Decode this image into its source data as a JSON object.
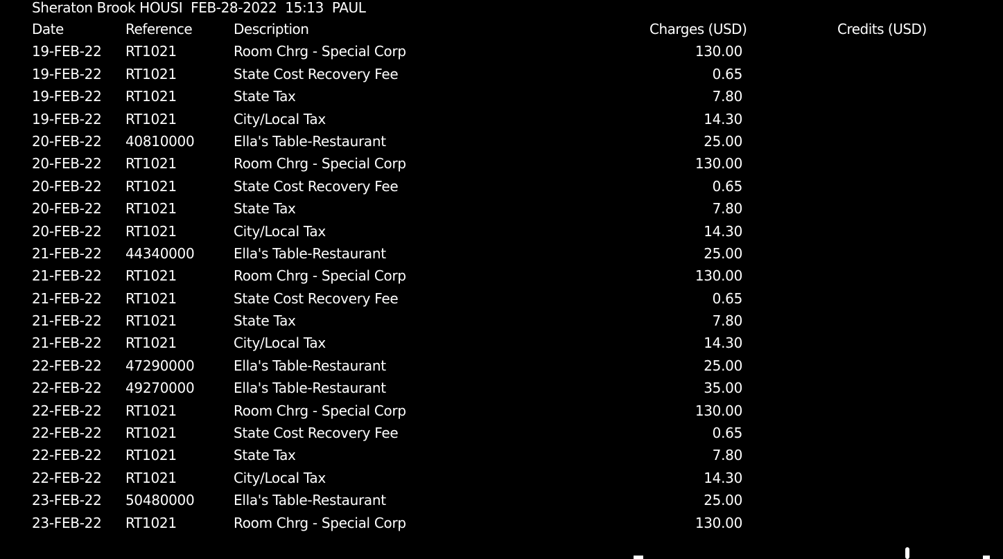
{
  "header": {
    "hotel": "Sheraton Brook HOUSI",
    "date": "FEB-28-2022",
    "time": "15:13",
    "user": "PAUL"
  },
  "columns": {
    "date": "Date",
    "reference": "Reference",
    "description": "Description",
    "charges": "Charges (USD)",
    "credits": "Credits (USD)"
  },
  "rows": [
    {
      "date": "19-FEB-22",
      "reference": "RT1021",
      "description": "Room Chrg - Special Corp",
      "charges": "130.00",
      "credits": ""
    },
    {
      "date": "19-FEB-22",
      "reference": "RT1021",
      "description": "State Cost Recovery Fee",
      "charges": "0.65",
      "credits": ""
    },
    {
      "date": "19-FEB-22",
      "reference": "RT1021",
      "description": "State Tax",
      "charges": "7.80",
      "credits": ""
    },
    {
      "date": "19-FEB-22",
      "reference": "RT1021",
      "description": "City/Local Tax",
      "charges": "14.30",
      "credits": ""
    },
    {
      "date": "20-FEB-22",
      "reference": "40810000",
      "description": "Ella's Table-Restaurant",
      "charges": "25.00",
      "credits": ""
    },
    {
      "date": "20-FEB-22",
      "reference": "RT1021",
      "description": "Room Chrg - Special Corp",
      "charges": "130.00",
      "credits": ""
    },
    {
      "date": "20-FEB-22",
      "reference": "RT1021",
      "description": "State Cost Recovery Fee",
      "charges": "0.65",
      "credits": ""
    },
    {
      "date": "20-FEB-22",
      "reference": "RT1021",
      "description": "State Tax",
      "charges": "7.80",
      "credits": ""
    },
    {
      "date": "20-FEB-22",
      "reference": "RT1021",
      "description": "City/Local Tax",
      "charges": "14.30",
      "credits": ""
    },
    {
      "date": "21-FEB-22",
      "reference": "44340000",
      "description": "Ella's Table-Restaurant",
      "charges": "25.00",
      "credits": ""
    },
    {
      "date": "21-FEB-22",
      "reference": "RT1021",
      "description": "Room Chrg - Special Corp",
      "charges": "130.00",
      "credits": ""
    },
    {
      "date": "21-FEB-22",
      "reference": "RT1021",
      "description": "State Cost Recovery Fee",
      "charges": "0.65",
      "credits": ""
    },
    {
      "date": "21-FEB-22",
      "reference": "RT1021",
      "description": "State Tax",
      "charges": "7.80",
      "credits": ""
    },
    {
      "date": "21-FEB-22",
      "reference": "RT1021",
      "description": "City/Local Tax",
      "charges": "14.30",
      "credits": ""
    },
    {
      "date": "22-FEB-22",
      "reference": "47290000",
      "description": "Ella's Table-Restaurant",
      "charges": "25.00",
      "credits": ""
    },
    {
      "date": "22-FEB-22",
      "reference": "49270000",
      "description": "Ella's Table-Restaurant",
      "charges": "35.00",
      "credits": ""
    },
    {
      "date": "22-FEB-22",
      "reference": "RT1021",
      "description": "Room Chrg - Special Corp",
      "charges": "130.00",
      "credits": ""
    },
    {
      "date": "22-FEB-22",
      "reference": "RT1021",
      "description": "State Cost Recovery Fee",
      "charges": "0.65",
      "credits": ""
    },
    {
      "date": "22-FEB-22",
      "reference": "RT1021",
      "description": "State Tax",
      "charges": "7.80",
      "credits": ""
    },
    {
      "date": "22-FEB-22",
      "reference": "RT1021",
      "description": "City/Local Tax",
      "charges": "14.30",
      "credits": ""
    },
    {
      "date": "23-FEB-22",
      "reference": "50480000",
      "description": "Ella's Table-Restaurant",
      "charges": "25.00",
      "credits": ""
    },
    {
      "date": "23-FEB-22",
      "reference": "RT1021",
      "description": "Room Chrg - Special Corp",
      "charges": "130.00",
      "credits": ""
    }
  ],
  "colors": {
    "background": "#000000",
    "text": "#ffffff"
  }
}
